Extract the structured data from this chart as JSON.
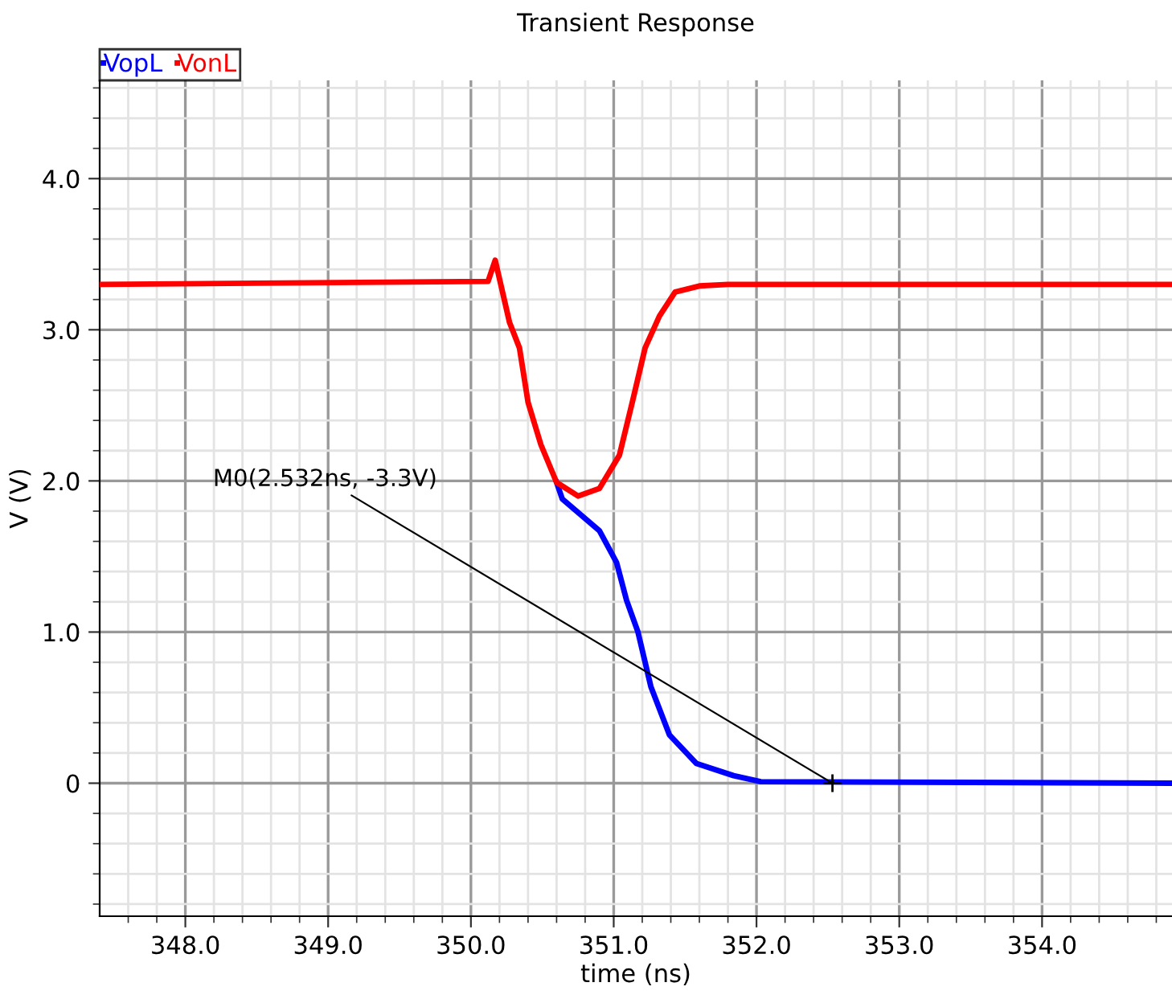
{
  "chart_data": {
    "type": "line",
    "title": "Transient Response",
    "xlabel": "time (ns)",
    "ylabel": "V (V)",
    "series": [
      {
        "name": "VopL",
        "color": "#0000ff",
        "x": [
          350.6,
          350.64,
          350.9,
          351.02,
          351.09,
          351.17,
          351.26,
          351.39,
          351.58,
          351.84,
          352.03,
          354.91
        ],
        "values": [
          1.99,
          1.88,
          1.67,
          1.46,
          1.21,
          1.0,
          0.64,
          0.32,
          0.13,
          0.05,
          0.01,
          0
        ]
      },
      {
        "name": "VonL",
        "color": "#ff0000",
        "x": [
          347.4,
          350.12,
          350.17,
          350.27,
          350.34,
          350.4,
          350.49,
          350.6,
          350.75,
          350.9,
          351.04,
          351.13,
          351.22,
          351.32,
          351.43,
          351.6,
          351.8,
          354.91
        ],
        "values": [
          3.3,
          3.32,
          3.46,
          3.05,
          2.88,
          2.52,
          2.24,
          1.99,
          1.9,
          1.95,
          2.17,
          2.52,
          2.88,
          3.09,
          3.25,
          3.29,
          3.3,
          3.3
        ]
      }
    ],
    "annotations": [
      {
        "text": "M0(2.532ns, -3.3V)",
        "x": 352.532,
        "y": 0
      }
    ],
    "xlim": [
      347.4,
      354.91
    ],
    "ylim": [
      -0.88,
      4.65
    ],
    "xticks": [
      {
        "value": 347.6,
        "label": null
      },
      {
        "value": 347.8,
        "label": null
      },
      {
        "value": 348,
        "label": "348.0"
      },
      {
        "value": 348.2,
        "label": null
      },
      {
        "value": 348.4,
        "label": null
      },
      {
        "value": 348.6,
        "label": null
      },
      {
        "value": 348.8,
        "label": null
      },
      {
        "value": 349,
        "label": "349.0"
      },
      {
        "value": 349.2,
        "label": null
      },
      {
        "value": 349.4,
        "label": null
      },
      {
        "value": 349.6,
        "label": null
      },
      {
        "value": 349.8,
        "label": null
      },
      {
        "value": 350,
        "label": "350.0"
      },
      {
        "value": 350.2,
        "label": null
      },
      {
        "value": 350.4,
        "label": null
      },
      {
        "value": 350.6,
        "label": null
      },
      {
        "value": 350.8,
        "label": null
      },
      {
        "value": 351,
        "label": "351.0"
      },
      {
        "value": 351.2,
        "label": null
      },
      {
        "value": 351.4,
        "label": null
      },
      {
        "value": 351.6,
        "label": null
      },
      {
        "value": 351.8,
        "label": null
      },
      {
        "value": 352,
        "label": "352.0"
      },
      {
        "value": 352.2,
        "label": null
      },
      {
        "value": 352.4,
        "label": null
      },
      {
        "value": 352.6,
        "label": null
      },
      {
        "value": 352.8,
        "label": null
      },
      {
        "value": 353,
        "label": "353.0"
      },
      {
        "value": 353.2,
        "label": null
      },
      {
        "value": 353.4,
        "label": null
      },
      {
        "value": 353.6,
        "label": null
      },
      {
        "value": 353.8,
        "label": null
      },
      {
        "value": 354,
        "label": "354.0"
      },
      {
        "value": 354.2,
        "label": null
      },
      {
        "value": 354.4,
        "label": null
      },
      {
        "value": 354.6,
        "label": null
      },
      {
        "value": 354.8,
        "label": null
      }
    ],
    "yticks": [
      {
        "value": -0.8,
        "label": null
      },
      {
        "value": -0.6,
        "label": null
      },
      {
        "value": -0.4,
        "label": null
      },
      {
        "value": -0.2,
        "label": null
      },
      {
        "value": 0,
        "label": "0"
      },
      {
        "value": 0.2,
        "label": null
      },
      {
        "value": 0.4,
        "label": null
      },
      {
        "value": 0.6,
        "label": null
      },
      {
        "value": 0.8,
        "label": null
      },
      {
        "value": 1,
        "label": "1.0"
      },
      {
        "value": 1.2,
        "label": null
      },
      {
        "value": 1.4,
        "label": null
      },
      {
        "value": 1.6,
        "label": null
      },
      {
        "value": 1.8,
        "label": null
      },
      {
        "value": 2,
        "label": "2.0"
      },
      {
        "value": 2.2,
        "label": null
      },
      {
        "value": 2.4,
        "label": null
      },
      {
        "value": 2.6,
        "label": null
      },
      {
        "value": 2.8,
        "label": null
      },
      {
        "value": 3,
        "label": "3.0"
      },
      {
        "value": 3.2,
        "label": null
      },
      {
        "value": 3.4,
        "label": null
      },
      {
        "value": 3.6,
        "label": null
      },
      {
        "value": 3.8,
        "label": null
      },
      {
        "value": 4,
        "label": "4.0"
      },
      {
        "value": 4.2,
        "label": null
      },
      {
        "value": 4.4,
        "label": null
      },
      {
        "value": 4.6,
        "label": null
      }
    ],
    "grid": true,
    "legend": "top left",
    "marker": "none",
    "line_style": "solid"
  }
}
